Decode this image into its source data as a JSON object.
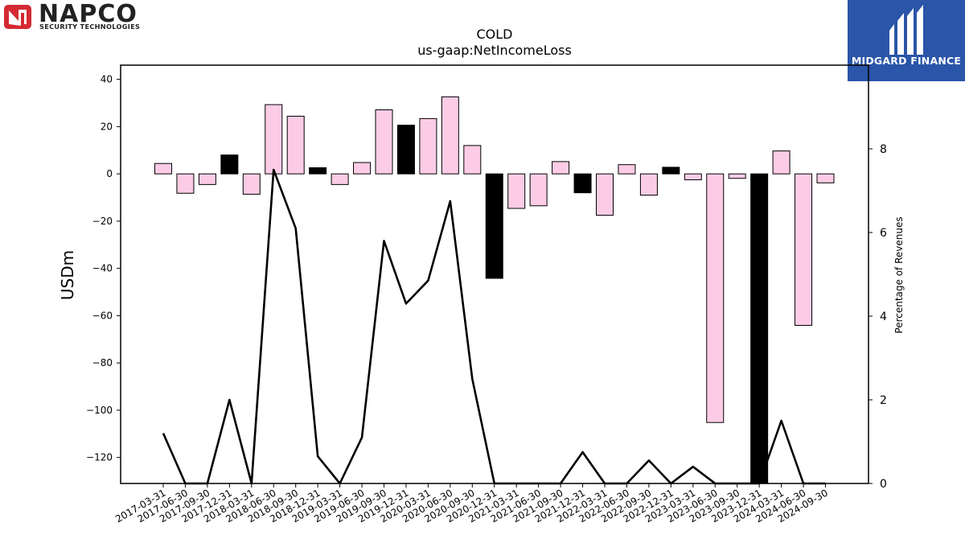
{
  "logos": {
    "left": {
      "name": "NAPCO",
      "subtitle": "SECURITY TECHNOLOGIES",
      "color": "#d42a33"
    },
    "right": {
      "name": "MIDGARD FINANCE",
      "color": "#2a55a8"
    }
  },
  "chart_data": {
    "type": "bar",
    "title": "COLD",
    "subtitle": "us-gaap:NetIncomeLoss",
    "ylabel": "USDm",
    "ylabel_right": "Percentage of Revenues",
    "ylim": [
      -131,
      46
    ],
    "ylim_right": [
      0,
      10
    ],
    "yticks": [
      40,
      20,
      0,
      -20,
      -40,
      -60,
      -80,
      -100,
      -120
    ],
    "yticks_right": [
      0,
      2,
      4,
      6,
      8
    ],
    "grid": false,
    "colors": {
      "positive_fill": "#fccce6",
      "highlight_fill": "#000000",
      "bar_edge": "#000000",
      "line": "#000000"
    },
    "categories": [
      "2017-03-31",
      "2017-06-30",
      "2017-09-30",
      "2017-12-31",
      "2018-03-31",
      "2018-06-30",
      "2018-09-30",
      "2018-12-31",
      "2019-03-31",
      "2019-06-30",
      "2019-09-30",
      "2019-12-31",
      "2020-03-31",
      "2020-06-30",
      "2020-09-30",
      "2020-12-31",
      "2021-03-31",
      "2021-06-30",
      "2021-09-30",
      "2021-12-31",
      "2022-03-31",
      "2022-06-30",
      "2022-09-30",
      "2022-12-31",
      "2023-03-31",
      "2023-06-30",
      "2023-09-30",
      "2023-12-31",
      "2024-03-31",
      "2024-06-30",
      "2024-09-30"
    ],
    "series": [
      {
        "type": "bar",
        "values": [
          4.4,
          -8.2,
          -4.5,
          8.0,
          -8.6,
          29.3,
          24.4,
          2.6,
          -4.5,
          4.8,
          27.1,
          20.6,
          23.4,
          32.6,
          12.0,
          -44.2,
          -14.6,
          -13.5,
          5.2,
          -8.0,
          -17.5,
          3.9,
          -9.0,
          2.8,
          -2.5,
          -105.2,
          -1.9,
          -131.0,
          9.7,
          -64.1,
          -3.8
        ],
        "highlight": [
          false,
          false,
          false,
          true,
          false,
          false,
          false,
          true,
          false,
          false,
          false,
          true,
          false,
          false,
          false,
          true,
          false,
          false,
          false,
          true,
          false,
          false,
          false,
          true,
          false,
          false,
          false,
          true,
          false,
          false,
          false
        ]
      },
      {
        "type": "line",
        "axis": "right",
        "values": [
          1.2,
          0,
          0,
          2.0,
          0,
          7.5,
          6.1,
          0.65,
          0,
          1.1,
          5.8,
          4.3,
          4.85,
          6.75,
          2.5,
          0,
          0,
          0,
          0,
          0.75,
          0,
          0,
          0.55,
          0,
          0.4,
          0,
          0,
          0,
          1.5,
          0,
          0
        ]
      }
    ]
  }
}
